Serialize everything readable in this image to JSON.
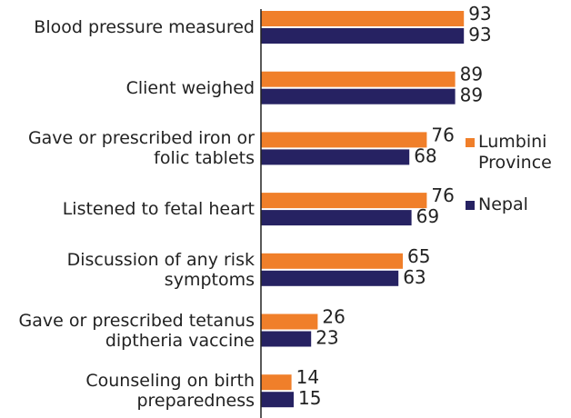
{
  "chart_data": {
    "type": "bar",
    "orientation": "horizontal",
    "categories": [
      "Blood pressure measured",
      "Client weighed",
      "Gave or prescribed iron or folic tablets",
      "Listened to fetal heart",
      "Discussion of any risk symptoms",
      "Gave or prescribed tetanus diptheria vaccine",
      "Counseling on birth preparedness"
    ],
    "series": [
      {
        "name": "Lumbini Province",
        "color": "#f07f2a",
        "values": [
          93,
          89,
          76,
          76,
          65,
          26,
          14
        ]
      },
      {
        "name": "Nepal",
        "color": "#262262",
        "values": [
          93,
          89,
          68,
          69,
          63,
          23,
          15
        ]
      }
    ],
    "xlim": [
      0,
      100
    ],
    "legend": "right"
  }
}
